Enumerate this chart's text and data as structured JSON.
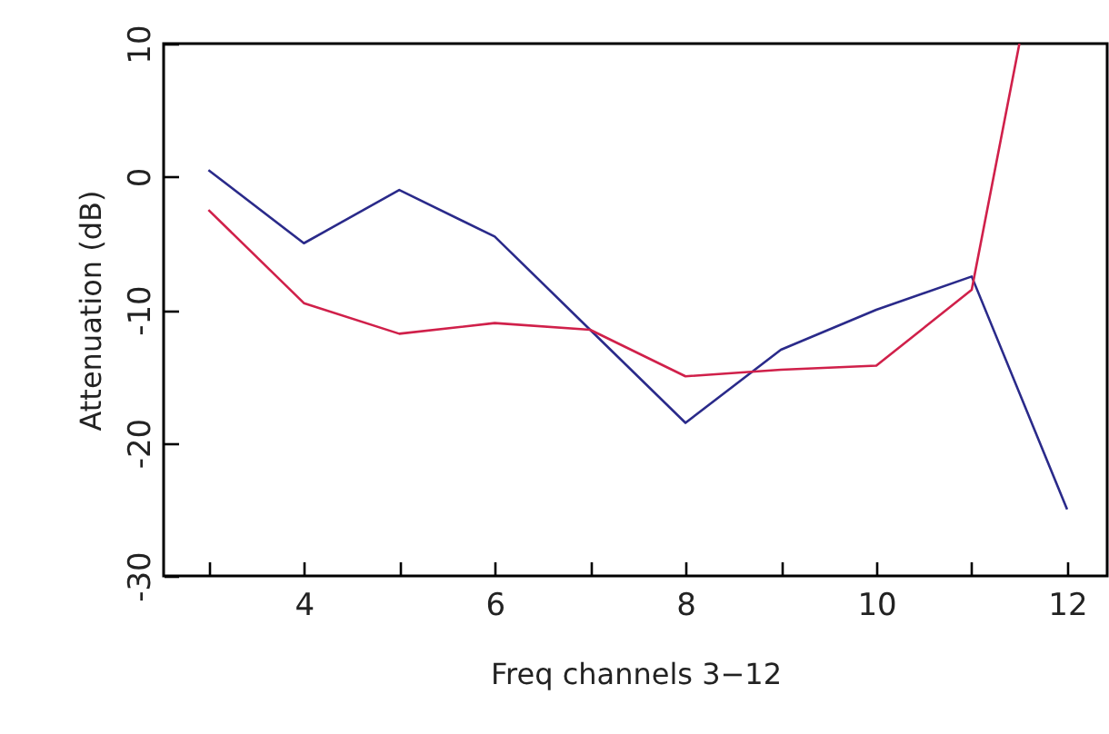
{
  "chart_data": {
    "type": "line",
    "xlabel": "Freq channels 3−12",
    "ylabel": "Attenuation (dB)",
    "xlim": [
      2.53,
      12.42
    ],
    "ylim": [
      -30,
      10
    ],
    "xticks": [
      {
        "value": 3,
        "label": null
      },
      4,
      {
        "value": 5,
        "label": null
      },
      6,
      {
        "value": 7,
        "label": null
      },
      8,
      {
        "value": 9,
        "label": null
      },
      10,
      {
        "value": 11,
        "label": null
      },
      12
    ],
    "yticks": [
      -30,
      -20,
      -10,
      0,
      10
    ],
    "grid": false,
    "legend": false,
    "marker": "none",
    "line_style": "solid",
    "series": [
      {
        "color": "#2a2a8a",
        "x": [
          3,
          4,
          5,
          6,
          7,
          8,
          9,
          10,
          11,
          12
        ],
        "values": [
          0.5,
          -5,
          -1,
          -4.5,
          -11.5,
          -18.5,
          -13,
          -10,
          -7.5,
          -25
        ]
      },
      {
        "color": "#d0204a",
        "x": [
          3,
          4,
          5,
          6,
          7,
          8,
          9,
          10,
          11,
          11.5
        ],
        "values": [
          -2.5,
          -9.5,
          -11.8,
          -11,
          -11.5,
          -15,
          -14.5,
          -14.2,
          -8.5,
          10
        ]
      }
    ]
  }
}
